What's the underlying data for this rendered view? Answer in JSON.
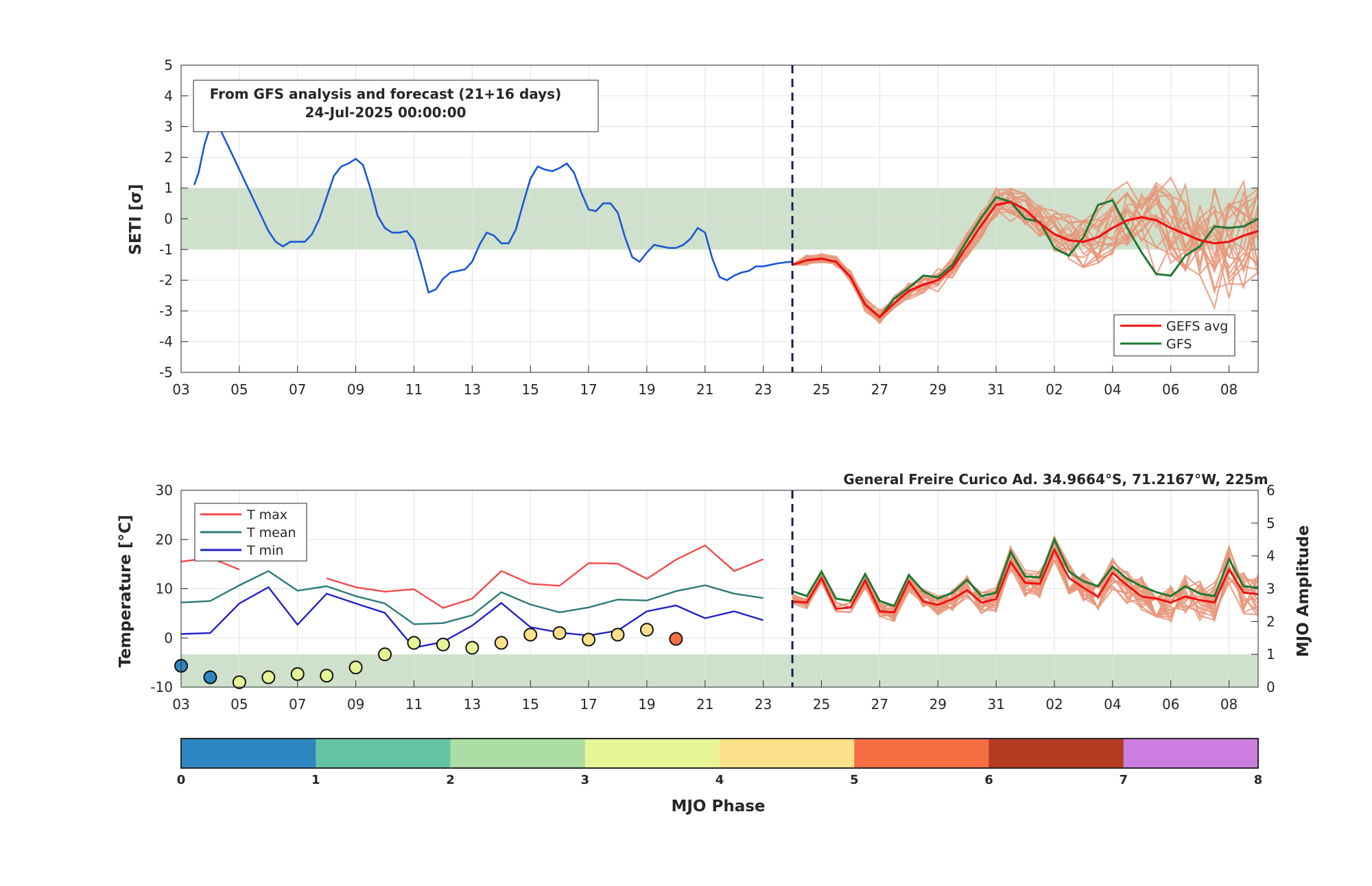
{
  "colors": {
    "obs_line": "#1a56d6",
    "gefs_avg": "#ee1111",
    "gfs": "#1a7a30",
    "ensemble": "#e8967a",
    "band": "#cfe1cc",
    "divider": "#1a1a50",
    "tmax": "#f24a4a",
    "tmean": "#2a7a76",
    "tmin": "#2020c8"
  },
  "top_panel": {
    "ylabel": "SETI [σ]",
    "info_line1": "From GFS analysis and forecast (21+16 days)",
    "info_line2": "24-Jul-2025 00:00:00",
    "legend": [
      "GEFS avg",
      "GFS"
    ],
    "yticks": [
      5,
      4,
      3,
      2,
      1,
      0,
      -1,
      -2,
      -3,
      -4,
      -5
    ],
    "xticks": [
      "03",
      "05",
      "07",
      "09",
      "11",
      "13",
      "15",
      "17",
      "19",
      "21",
      "23",
      "25",
      "27",
      "29",
      "31",
      "02",
      "04",
      "06",
      "08"
    ],
    "band": [
      -1,
      1
    ]
  },
  "bottom_panel": {
    "title": "General Freire Curico Ad. 34.9664°S, 71.2167°W, 225m",
    "ylabel_left": "Temperature [°C]",
    "ylabel_right": "MJO Amplitude",
    "legend": [
      "T max",
      "T mean",
      "T min"
    ],
    "yticks_left": [
      30,
      20,
      10,
      0,
      -10
    ],
    "yticks_right": [
      6,
      5,
      4,
      3,
      2,
      1,
      0
    ],
    "xticks": [
      "03",
      "05",
      "07",
      "09",
      "11",
      "13",
      "15",
      "17",
      "19",
      "21",
      "23",
      "25",
      "27",
      "29",
      "31",
      "02",
      "04",
      "06",
      "08"
    ],
    "band_mjo": [
      0,
      1
    ]
  },
  "colorbar": {
    "label": "MJO Phase",
    "ticks": [
      "0",
      "1",
      "2",
      "3",
      "4",
      "5",
      "6",
      "7",
      "8"
    ],
    "colors": [
      "#2e86c1",
      "#66c2a5",
      "#abdda4",
      "#e6f598",
      "#fee08b",
      "#f46d43",
      "#b53a22",
      "#cc7ee0"
    ]
  },
  "chart_data": [
    {
      "type": "line",
      "title": "From GFS analysis and forecast (21+16 days)",
      "ylabel": "SETI [σ]",
      "ylim": [
        -5,
        5
      ],
      "xlim": [
        0,
        37
      ],
      "forecast_start_day": 21,
      "series": [
        {
          "x": [
            0.45,
            0.6,
            0.8,
            1.0,
            1.25,
            1.5,
            1.75,
            2.0,
            2.25,
            2.5,
            2.75,
            3.0,
            3.25,
            3.5,
            3.75,
            4.0,
            4.25,
            4.5,
            4.75,
            5.0,
            5.25,
            5.5,
            5.75,
            6.0,
            6.25,
            6.5,
            6.75,
            7.0,
            7.25,
            7.5,
            7.75,
            8.0,
            8.25,
            8.5,
            8.75,
            9.0,
            9.25,
            9.5,
            9.75,
            10.0,
            10.25,
            10.5,
            10.75,
            11.0,
            11.25,
            11.5,
            11.75,
            12.0,
            12.25,
            12.5,
            12.75,
            13.0,
            13.25,
            13.5,
            13.75,
            14.0,
            14.25,
            14.5,
            14.75,
            15.0,
            15.25,
            15.5,
            15.75,
            16.0,
            16.25,
            16.5,
            16.75,
            17.0,
            17.25,
            17.5,
            17.75,
            18.0,
            18.25,
            18.5,
            18.75,
            19.0,
            19.25,
            19.5,
            19.75,
            20.0,
            20.25,
            20.5,
            20.75,
            21.0
          ],
          "y": [
            1.1,
            1.5,
            2.4,
            3.0,
            3.1,
            2.6,
            2.1,
            1.6,
            1.1,
            0.6,
            0.1,
            -0.4,
            -0.75,
            -0.9,
            -0.75,
            -0.75,
            -0.75,
            -0.5,
            0.0,
            0.7,
            1.4,
            1.7,
            1.8,
            1.95,
            1.75,
            1.0,
            0.1,
            -0.3,
            -0.45,
            -0.45,
            -0.4,
            -0.7,
            -1.5,
            -2.4,
            -2.3,
            -1.95,
            -1.75,
            -1.7,
            -1.65,
            -1.4,
            -0.85,
            -0.45,
            -0.55,
            -0.8,
            -0.8,
            -0.35,
            0.5,
            1.3,
            1.7,
            1.6,
            1.55,
            1.65,
            1.8,
            1.5,
            0.85,
            0.3,
            0.25,
            0.5,
            0.5,
            0.2,
            -0.6,
            -1.25,
            -1.4,
            -1.1,
            -0.85,
            -0.9,
            -0.95,
            -0.95,
            -0.85,
            -0.65,
            -0.3,
            -0.45,
            -1.3,
            -1.9,
            -2.0,
            -1.85,
            -1.75,
            -1.7,
            -1.55,
            -1.55,
            -1.5,
            -1.45,
            -1.42,
            -1.4
          ]
        },
        {
          "name": "GEFS avg",
          "x": [
            21,
            21.5,
            22,
            22.5,
            23,
            23.5,
            24,
            24.5,
            25,
            25.5,
            26,
            26.5,
            27,
            27.5,
            28,
            28.5,
            29,
            29.5,
            30,
            30.5,
            31,
            31.5,
            32,
            32.5,
            33,
            33.5,
            34,
            34.5,
            35,
            35.5,
            36,
            36.5,
            37
          ],
          "y": [
            -1.5,
            -1.35,
            -1.3,
            -1.4,
            -1.9,
            -2.8,
            -3.2,
            -2.75,
            -2.35,
            -2.15,
            -2.0,
            -1.6,
            -0.9,
            -0.2,
            0.45,
            0.55,
            0.3,
            -0.15,
            -0.5,
            -0.7,
            -0.75,
            -0.6,
            -0.3,
            -0.05,
            0.05,
            -0.05,
            -0.3,
            -0.5,
            -0.7,
            -0.8,
            -0.75,
            -0.55,
            -0.4
          ]
        },
        {
          "name": "GFS",
          "x": [
            21,
            21.5,
            22,
            22.5,
            23,
            23.5,
            24,
            24.5,
            25,
            25.5,
            26,
            26.5,
            27,
            27.5,
            28,
            28.5,
            29,
            29.5,
            30,
            30.5,
            31,
            31.5,
            32,
            32.5,
            33,
            33.5,
            34,
            34.5,
            35,
            35.5,
            36,
            36.5,
            37
          ],
          "y": [
            -1.5,
            -1.35,
            -1.3,
            -1.4,
            -1.9,
            -2.8,
            -3.2,
            -2.6,
            -2.25,
            -1.85,
            -1.9,
            -1.5,
            -0.7,
            0.05,
            0.7,
            0.55,
            0.0,
            -0.1,
            -0.95,
            -1.2,
            -0.6,
            0.45,
            0.6,
            -0.3,
            -1.1,
            -1.8,
            -1.85,
            -1.2,
            -0.9,
            -0.25,
            -0.3,
            -0.25,
            0.0
          ]
        }
      ]
    },
    {
      "type": "line",
      "title": "General Freire Curico Ad. 34.9664°S, 71.2167°W, 225m",
      "ylabel": "Temperature [°C]",
      "y2label": "MJO Amplitude",
      "ylim": [
        -10,
        30
      ],
      "y2lim": [
        0,
        6
      ],
      "xlim": [
        0,
        37
      ],
      "series": [
        {
          "name": "T max",
          "x": [
            0,
            1,
            2,
            3,
            4,
            5,
            6,
            7,
            8,
            9,
            10,
            11,
            12,
            13,
            14,
            15,
            16,
            17,
            18,
            19,
            20
          ],
          "y": [
            15.5,
            16.3,
            13.9,
            null,
            null,
            12.1,
            10.3,
            9.4,
            9.9,
            6.1,
            8.0,
            13.6,
            11.0,
            10.6,
            15.2,
            15.1,
            12.0,
            15.9,
            18.8,
            13.6,
            16.0
          ]
        },
        {
          "name": "T mean",
          "x": [
            0,
            1,
            2,
            3,
            4,
            5,
            6,
            7,
            8,
            9,
            10,
            11,
            12,
            13,
            14,
            15,
            16,
            17,
            18,
            19,
            20
          ],
          "y": [
            7.2,
            7.5,
            10.7,
            13.6,
            9.6,
            10.5,
            8.5,
            7.0,
            2.8,
            3.0,
            4.6,
            9.3,
            6.8,
            5.2,
            6.2,
            7.8,
            7.6,
            9.5,
            10.7,
            9.0,
            8.1
          ]
        },
        {
          "name": "T min",
          "x": [
            0,
            1,
            2,
            3,
            4,
            5,
            6,
            7,
            8,
            9,
            10,
            11,
            12,
            13,
            14,
            15,
            16,
            17,
            18,
            19,
            20
          ],
          "y": [
            0.8,
            1.0,
            7.0,
            10.3,
            2.7,
            9.0,
            7.0,
            5.1,
            -2.0,
            -0.8,
            2.5,
            7.1,
            2.2,
            1.1,
            0.5,
            1.5,
            5.4,
            6.6,
            4.0,
            5.4,
            3.6
          ]
        },
        {
          "name": "GFS",
          "x": [
            21,
            21.5,
            22,
            22.5,
            23,
            23.5,
            24,
            24.5,
            25,
            25.5,
            26,
            26.5,
            27,
            27.5,
            28,
            28.5,
            29,
            29.5,
            30,
            30.5,
            31,
            31.5,
            32,
            32.5,
            33,
            33.5,
            34,
            34.5,
            35,
            35.5,
            36,
            36.5,
            37
          ],
          "y": [
            9.5,
            8.5,
            13.5,
            8.0,
            7.5,
            13.0,
            7.5,
            6.5,
            12.8,
            9.5,
            8.0,
            9.2,
            11.8,
            8.5,
            9.2,
            17.5,
            12.5,
            12.3,
            20.0,
            13.5,
            11.5,
            10.5,
            14.5,
            12.0,
            10.5,
            9.3,
            8.5,
            10.5,
            9.0,
            8.5,
            16.0,
            10.5,
            10.2
          ]
        }
      ],
      "mjo_points": [
        {
          "x": 0,
          "amplitude": 0.65,
          "phase": 1
        },
        {
          "x": 1,
          "amplitude": 0.3,
          "phase": 1
        },
        {
          "x": 2,
          "amplitude": 0.15,
          "phase": 4
        },
        {
          "x": 3,
          "amplitude": 0.3,
          "phase": 4
        },
        {
          "x": 4,
          "amplitude": 0.4,
          "phase": 4
        },
        {
          "x": 5,
          "amplitude": 0.35,
          "phase": 4
        },
        {
          "x": 6,
          "amplitude": 0.6,
          "phase": 4
        },
        {
          "x": 7,
          "amplitude": 1.0,
          "phase": 4
        },
        {
          "x": 8,
          "amplitude": 1.35,
          "phase": 4
        },
        {
          "x": 9,
          "amplitude": 1.3,
          "phase": 4
        },
        {
          "x": 10,
          "amplitude": 1.2,
          "phase": 4
        },
        {
          "x": 11,
          "amplitude": 1.35,
          "phase": 5
        },
        {
          "x": 12,
          "amplitude": 1.6,
          "phase": 5
        },
        {
          "x": 13,
          "amplitude": 1.65,
          "phase": 5
        },
        {
          "x": 14,
          "amplitude": 1.45,
          "phase": 5
        },
        {
          "x": 15,
          "amplitude": 1.6,
          "phase": 5
        },
        {
          "x": 16,
          "amplitude": 1.75,
          "phase": 5
        },
        {
          "x": 17,
          "amplitude": 1.47,
          "phase": 6
        }
      ]
    }
  ]
}
